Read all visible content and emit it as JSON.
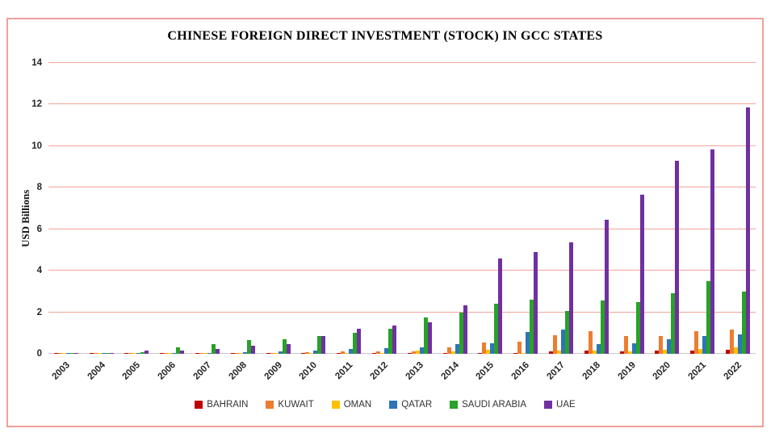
{
  "panel": {
    "border_color": "#F0A097",
    "background": "#FFFFFF"
  },
  "chart_data": {
    "type": "bar",
    "title": "CHINESE FOREIGN DIRECT INVESTMENT (STOCK) IN GCC STATES",
    "xlabel": "",
    "ylabel": "USD Billions",
    "ylim": [
      0,
      14
    ],
    "yticks": [
      0,
      2,
      4,
      6,
      8,
      10,
      12,
      14
    ],
    "grid": true,
    "gridline_color": "#F2A49C",
    "axis_line_color": "#C9C9C9",
    "legend_position": "bottom",
    "categories": [
      "2003",
      "2004",
      "2005",
      "2006",
      "2007",
      "2008",
      "2009",
      "2010",
      "2011",
      "2012",
      "2013",
      "2014",
      "2015",
      "2016",
      "2017",
      "2018",
      "2019",
      "2020",
      "2021",
      "2022"
    ],
    "series": [
      {
        "name": "BAHRAIN",
        "color": "#C00000",
        "values": [
          0.02,
          0.02,
          0.02,
          0.02,
          0.03,
          0.03,
          0.03,
          0.03,
          0.04,
          0.04,
          0.05,
          0.05,
          0.05,
          0.05,
          0.1,
          0.15,
          0.12,
          0.15,
          0.15,
          0.2
        ]
      },
      {
        "name": "KUWAIT",
        "color": "#ED7D31",
        "values": [
          0.01,
          0.01,
          0.02,
          0.02,
          0.02,
          0.03,
          0.05,
          0.06,
          0.1,
          0.1,
          0.1,
          0.3,
          0.55,
          0.6,
          0.9,
          1.1,
          0.85,
          0.85,
          1.1,
          1.15
        ]
      },
      {
        "name": "OMAN",
        "color": "#FFC000",
        "values": [
          0.01,
          0.01,
          0.01,
          0.01,
          0.01,
          0.02,
          0.02,
          0.02,
          0.03,
          0.04,
          0.15,
          0.1,
          0.2,
          0.05,
          0.15,
          0.15,
          0.1,
          0.2,
          0.25,
          0.3
        ]
      },
      {
        "name": "QATAR",
        "color": "#2E75B6",
        "values": [
          0.02,
          0.02,
          0.02,
          0.03,
          0.03,
          0.08,
          0.12,
          0.16,
          0.25,
          0.28,
          0.33,
          0.45,
          0.5,
          1.05,
          1.15,
          0.45,
          0.5,
          0.7,
          0.85,
          0.95
        ]
      },
      {
        "name": "SAUDI ARABIA",
        "color": "#28A228",
        "values": [
          0.03,
          0.03,
          0.06,
          0.3,
          0.45,
          0.65,
          0.7,
          0.85,
          1.0,
          1.2,
          1.75,
          2.0,
          2.4,
          2.6,
          2.05,
          2.55,
          2.5,
          2.9,
          3.5,
          3.0
        ]
      },
      {
        "name": "UAE",
        "color": "#7030A0",
        "values": [
          0.02,
          0.04,
          0.15,
          0.15,
          0.25,
          0.4,
          0.45,
          0.85,
          1.2,
          1.35,
          1.5,
          2.35,
          4.6,
          4.9,
          5.35,
          6.45,
          7.65,
          9.3,
          9.85,
          11.85
        ]
      }
    ]
  }
}
